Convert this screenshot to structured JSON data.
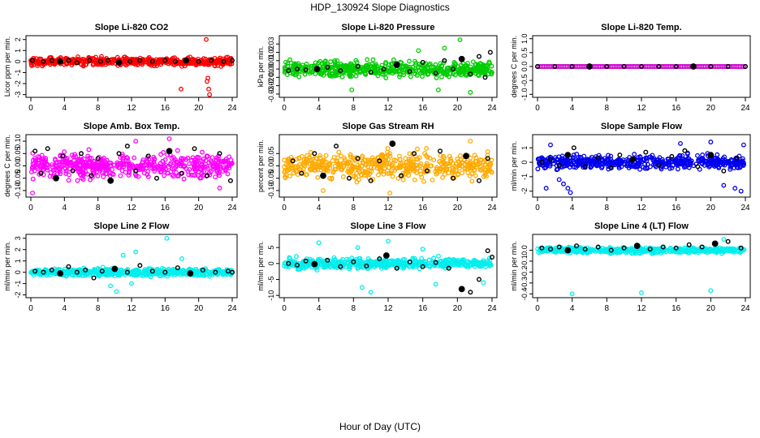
{
  "figure": {
    "title": "HDP_130924  Slope Diagnostics",
    "xlabel": "Hour of Day (UTC)"
  },
  "chart_data": [
    {
      "type": "scatter",
      "title": "Slope Li-820 CO2",
      "ylabel": "Licor ppm per min.",
      "xlim": [
        0,
        24
      ],
      "ylim": [
        -3.1,
        2.2
      ],
      "xticks": [
        0,
        4,
        8,
        12,
        16,
        20,
        24
      ],
      "yticks": [
        -3,
        -2,
        -1,
        0,
        1,
        2
      ],
      "color": "#ff0000",
      "spread": 0.35,
      "black_points": [
        [
          0.2,
          0.1
        ],
        [
          1.5,
          0.0
        ],
        [
          2.5,
          0.1
        ],
        [
          3.5,
          0.0
        ],
        [
          4.5,
          0.1
        ],
        [
          5.5,
          -0.1
        ],
        [
          7,
          0.1
        ],
        [
          8.3,
          0.0
        ],
        [
          9.2,
          0.1
        ],
        [
          10.5,
          -0.1
        ],
        [
          11.8,
          0.0
        ],
        [
          13,
          0.1
        ],
        [
          14.5,
          0.0
        ],
        [
          16,
          0.1
        ],
        [
          17.2,
          0.0
        ],
        [
          18.5,
          0.1
        ],
        [
          20,
          0.0
        ],
        [
          21.5,
          0.1
        ],
        [
          23,
          0.0
        ],
        [
          24,
          0.1
        ]
      ],
      "outliers": [
        [
          20.9,
          2.0
        ],
        [
          17.9,
          -2.5
        ],
        [
          21.1,
          -1.5
        ],
        [
          21.0,
          -1.8
        ],
        [
          21.2,
          -2.5
        ],
        [
          21.3,
          -3.0
        ]
      ]
    },
    {
      "type": "scatter",
      "title": "Slope Li-820 Pressure",
      "ylabel": "kPa per min.",
      "xlim": [
        0,
        24
      ],
      "ylim": [
        -0.032,
        0.038
      ],
      "xticks": [
        0,
        4,
        8,
        12,
        16,
        20,
        24
      ],
      "yticks": [
        -0.03,
        -0.02,
        -0.01,
        0.0,
        0.01,
        0.02,
        0.03
      ],
      "ytick_labels": [
        "-0.03",
        "-0.02",
        "-0.01",
        "0.00",
        "0.01",
        "0.02",
        "0.03"
      ],
      "color": "#00cc00",
      "spread": 0.009,
      "black_points": [
        [
          0.5,
          -0.002
        ],
        [
          1.5,
          0.0
        ],
        [
          2.5,
          -0.001
        ],
        [
          3.8,
          0.0
        ],
        [
          5,
          0.002
        ],
        [
          6.5,
          -0.002
        ],
        [
          8.5,
          0.003
        ],
        [
          10,
          -0.004
        ],
        [
          11.5,
          0.0
        ],
        [
          13,
          0.005
        ],
        [
          14.5,
          -0.003
        ],
        [
          16,
          0.008
        ],
        [
          17.5,
          -0.005
        ],
        [
          18.5,
          0.01
        ],
        [
          19.5,
          0.0
        ],
        [
          20.5,
          0.012
        ],
        [
          21.5,
          -0.006
        ],
        [
          22.5,
          0.015
        ],
        [
          23.2,
          -0.01
        ],
        [
          23.8,
          0.02
        ]
      ],
      "outliers": [
        [
          20.3,
          0.035
        ],
        [
          21.5,
          -0.028
        ],
        [
          17.8,
          -0.025
        ],
        [
          18.5,
          0.025
        ],
        [
          7.8,
          -0.025
        ],
        [
          15.5,
          0.022
        ]
      ]
    },
    {
      "type": "scatter",
      "title": "Slope Li-820 Temp.",
      "ylabel": "degrees C per min.",
      "xlim": [
        0,
        24
      ],
      "ylim": [
        -1.05,
        1.05
      ],
      "xticks": [
        0,
        4,
        8,
        12,
        16,
        20,
        24
      ],
      "yticks": [
        -1.0,
        -0.5,
        0.0,
        0.5,
        1.0
      ],
      "ytick_labels": [
        "-1.0",
        "-0.5",
        "0.0",
        "0.5",
        "1.0"
      ],
      "color": "#cc00cc",
      "spread": 0.0,
      "black_points": [
        [
          0,
          0
        ],
        [
          2,
          0
        ],
        [
          4,
          0
        ],
        [
          6,
          0
        ],
        [
          8,
          0
        ],
        [
          10,
          0
        ],
        [
          12,
          0
        ],
        [
          14,
          0
        ],
        [
          16,
          0
        ],
        [
          18,
          0
        ],
        [
          20,
          0
        ],
        [
          22,
          0
        ],
        [
          24,
          0
        ]
      ],
      "outliers": []
    },
    {
      "type": "scatter",
      "title": "Slope Amb. Box Temp.",
      "ylabel": "degrees C per min.",
      "xlim": [
        0,
        24
      ],
      "ylim": [
        -0.12,
        0.12
      ],
      "xticks": [
        0,
        4,
        8,
        12,
        16,
        20,
        24
      ],
      "yticks": [
        -0.1,
        -0.05,
        0.0,
        0.05,
        0.1
      ],
      "ytick_labels": [
        "-0.10",
        "-0.05",
        "0.00",
        "0.05",
        "0.10"
      ],
      "color": "#ff00ff",
      "spread": 0.045,
      "black_points": [
        [
          0.5,
          0.06
        ],
        [
          1.2,
          -0.03
        ],
        [
          2,
          0.07
        ],
        [
          3,
          -0.05
        ],
        [
          3.8,
          0.04
        ],
        [
          5,
          -0.02
        ],
        [
          6,
          0.05
        ],
        [
          7.2,
          -0.04
        ],
        [
          8,
          0.03
        ],
        [
          9.5,
          -0.06
        ],
        [
          10.5,
          0.05
        ],
        [
          11.5,
          0.08
        ],
        [
          12.5,
          -0.02
        ],
        [
          14,
          0.04
        ],
        [
          15,
          -0.05
        ],
        [
          16.5,
          0.06
        ],
        [
          18,
          -0.03
        ],
        [
          19.5,
          0.07
        ],
        [
          21,
          -0.04
        ],
        [
          22.5,
          0.05
        ],
        [
          23.8,
          -0.06
        ]
      ],
      "outliers": [
        [
          0.2,
          -0.11
        ],
        [
          16.5,
          0.11
        ],
        [
          22.5,
          -0.09
        ],
        [
          12.5,
          0.1
        ]
      ]
    },
    {
      "type": "scatter",
      "title": "Slope Gas Stream RH",
      "ylabel": "percent per min.",
      "xlim": [
        0,
        24
      ],
      "ylim": [
        -0.12,
        0.12
      ],
      "xticks": [
        0,
        4,
        8,
        12,
        16,
        20,
        24
      ],
      "yticks": [
        -0.1,
        -0.05,
        0.0,
        0.05
      ],
      "ytick_labels": [
        "-0.10",
        "-0.05",
        "0.00",
        "0.05"
      ],
      "color": "#ffaa00",
      "spread": 0.05,
      "black_points": [
        [
          1,
          0.02
        ],
        [
          2,
          -0.03
        ],
        [
          3.5,
          0.05
        ],
        [
          4.5,
          -0.04
        ],
        [
          6,
          0.08
        ],
        [
          7.5,
          -0.05
        ],
        [
          8.5,
          0.03
        ],
        [
          10,
          -0.06
        ],
        [
          11,
          0.02
        ],
        [
          12.5,
          0.09
        ],
        [
          13.5,
          -0.04
        ],
        [
          15,
          0.05
        ],
        [
          16.5,
          -0.02
        ],
        [
          18,
          0.06
        ],
        [
          19.5,
          -0.05
        ],
        [
          21,
          0.04
        ],
        [
          22.5,
          -0.06
        ],
        [
          23.5,
          0.03
        ]
      ],
      "outliers": [
        [
          21.5,
          0.1
        ],
        [
          12.2,
          -0.11
        ],
        [
          4.5,
          -0.1
        ]
      ]
    },
    {
      "type": "scatter",
      "title": "Slope Sample Flow",
      "ylabel": "ml/min per min.",
      "xlim": [
        0,
        24
      ],
      "ylim": [
        -2.3,
        1.8
      ],
      "xticks": [
        0,
        4,
        8,
        12,
        16,
        20,
        24
      ],
      "yticks": [
        -2,
        -1,
        0,
        1
      ],
      "color": "#0000ee",
      "spread": 0.45,
      "black_points": [
        [
          0.5,
          0.0
        ],
        [
          1.5,
          0.2
        ],
        [
          2.5,
          -0.2
        ],
        [
          3.5,
          0.5
        ],
        [
          4.2,
          1.0
        ],
        [
          5.5,
          -0.3
        ],
        [
          7,
          0.3
        ],
        [
          8.5,
          -0.4
        ],
        [
          9.5,
          0.5
        ],
        [
          11,
          0.2
        ],
        [
          12.5,
          0.7
        ],
        [
          14,
          -0.2
        ],
        [
          15.5,
          0.4
        ],
        [
          17,
          0.8
        ],
        [
          18.5,
          -0.3
        ],
        [
          20,
          0.5
        ],
        [
          21.5,
          -0.6
        ],
        [
          23,
          0.3
        ]
      ],
      "outliers": [
        [
          3,
          -1.5
        ],
        [
          3.5,
          -1.8
        ],
        [
          3.8,
          -2.1
        ],
        [
          1,
          -1.8
        ],
        [
          1.5,
          1.2
        ],
        [
          16.5,
          1.3
        ],
        [
          20,
          1.4
        ],
        [
          21.5,
          -1.6
        ],
        [
          23.5,
          -2.0
        ],
        [
          23.8,
          1.2
        ],
        [
          2.5,
          -1.2
        ],
        [
          22.8,
          -1.8
        ]
      ]
    },
    {
      "type": "scatter",
      "title": "Slope Line 2 Flow",
      "ylabel": "ml/min per min.",
      "xlim": [
        0,
        24
      ],
      "ylim": [
        -2.1,
        3.2
      ],
      "xticks": [
        0,
        4,
        8,
        12,
        16,
        20,
        24
      ],
      "yticks": [
        -2,
        -1,
        0,
        1,
        2,
        3
      ],
      "color": "#00eeee",
      "spread": 0.3,
      "black_points": [
        [
          0.5,
          0.1
        ],
        [
          1.5,
          0.0
        ],
        [
          2.5,
          0.2
        ],
        [
          3.5,
          -0.1
        ],
        [
          4.5,
          0.5
        ],
        [
          5.5,
          0.0
        ],
        [
          6.5,
          0.2
        ],
        [
          7.5,
          -0.5
        ],
        [
          8.5,
          0.1
        ],
        [
          10,
          0.3
        ],
        [
          11.5,
          0.0
        ],
        [
          13,
          0.6
        ],
        [
          14.5,
          0.1
        ],
        [
          16,
          0.0
        ],
        [
          17.5,
          0.4
        ],
        [
          19,
          -0.1
        ],
        [
          20.5,
          0.2
        ],
        [
          22,
          0.0
        ],
        [
          23.5,
          0.1
        ],
        [
          24,
          0.0
        ]
      ],
      "outliers": [
        [
          16.2,
          3.0
        ],
        [
          10.2,
          -1.7
        ],
        [
          12,
          -1.0
        ],
        [
          11,
          1.5
        ],
        [
          12.5,
          1.8
        ],
        [
          18,
          1.2
        ],
        [
          9.5,
          -1.2
        ]
      ]
    },
    {
      "type": "scatter",
      "title": "Slope Line 3 Flow",
      "ylabel": "ml/min per min.",
      "xlim": [
        0,
        24
      ],
      "ylim": [
        -10.2,
        8.6
      ],
      "xticks": [
        0,
        4,
        8,
        12,
        16,
        20,
        24
      ],
      "yticks": [
        -10,
        -5,
        0,
        5
      ],
      "color": "#00eeee",
      "spread": 1.5,
      "black_points": [
        [
          0.5,
          0.0
        ],
        [
          1.5,
          -0.5
        ],
        [
          2.5,
          0.8
        ],
        [
          3.5,
          -0.2
        ],
        [
          5,
          1.0
        ],
        [
          6.5,
          -1.0
        ],
        [
          8,
          0.5
        ],
        [
          9.5,
          -0.8
        ],
        [
          11,
          1.5
        ],
        [
          11.8,
          2.5
        ],
        [
          13,
          -1.5
        ],
        [
          14.5,
          0.5
        ],
        [
          16,
          -1.0
        ],
        [
          17.5,
          0.3
        ],
        [
          19,
          -1.5
        ],
        [
          20.5,
          -8.0
        ],
        [
          21.5,
          -9.0
        ],
        [
          22.5,
          -5.0
        ],
        [
          23.5,
          4.0
        ],
        [
          24,
          2.0
        ]
      ],
      "outliers": [
        [
          4,
          6.5
        ],
        [
          12,
          7.0
        ],
        [
          9,
          -7.5
        ],
        [
          10,
          -9.0
        ],
        [
          17.5,
          -6.5
        ],
        [
          23,
          -6.0
        ],
        [
          8.5,
          5.0
        ],
        [
          16,
          4.5
        ]
      ]
    },
    {
      "type": "scatter",
      "title": "Slope Line 4 (LT) Flow",
      "ylabel": "ml/min per min.",
      "xlim": [
        0,
        24
      ],
      "ylim": [
        -0.42,
        0.13
      ],
      "xticks": [
        0,
        4,
        8,
        12,
        16,
        20,
        24
      ],
      "yticks": [
        -0.4,
        -0.3,
        -0.2,
        -0.1,
        0.0
      ],
      "ytick_labels": [
        "-0.4",
        "-0.3",
        "-0.2",
        "-0.1",
        "0.0"
      ],
      "color": "#00eeee",
      "spread": 0.025,
      "black_points": [
        [
          0.5,
          0.02
        ],
        [
          1.5,
          0.01
        ],
        [
          2.5,
          0.03
        ],
        [
          3.5,
          0.0
        ],
        [
          4.5,
          0.04
        ],
        [
          5.5,
          0.01
        ],
        [
          7,
          0.03
        ],
        [
          8.5,
          0.0
        ],
        [
          10,
          0.02
        ],
        [
          11.5,
          0.04
        ],
        [
          13,
          0.01
        ],
        [
          14.5,
          0.03
        ],
        [
          16,
          0.02
        ],
        [
          17.5,
          0.05
        ],
        [
          19,
          0.03
        ],
        [
          20.5,
          0.06
        ],
        [
          22,
          0.08
        ],
        [
          23.5,
          0.02
        ]
      ],
      "outliers": [
        [
          4,
          -0.4
        ],
        [
          12,
          -0.39
        ],
        [
          20,
          -0.37
        ],
        [
          21.5,
          0.1
        ]
      ]
    }
  ]
}
